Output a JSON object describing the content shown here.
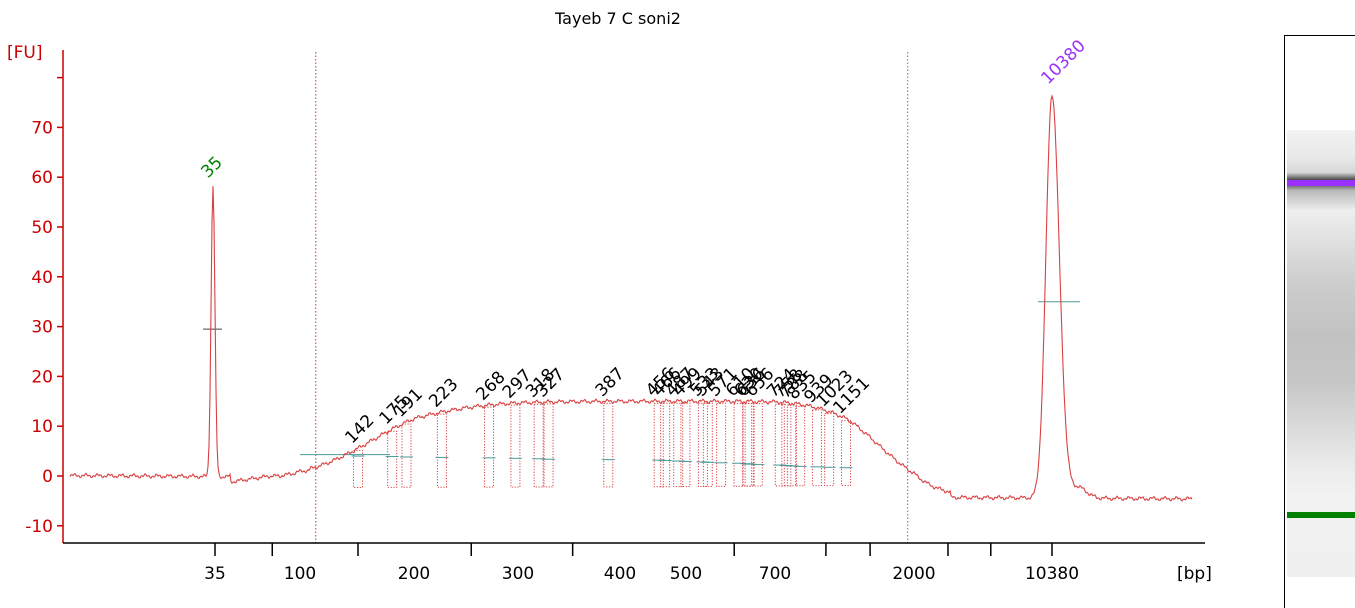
{
  "chart_data": {
    "type": "line",
    "title": "Tayeb 7 C soni2",
    "ylabel": "[FU]",
    "xlabel": "[bp]",
    "ylim": [
      -13,
      85
    ],
    "y_ticks": [
      -10,
      0,
      10,
      20,
      30,
      40,
      50,
      60,
      70
    ],
    "x_tick_labels": [
      "35",
      "100",
      "200",
      "300",
      "400",
      "500",
      "700",
      "2000",
      "10380"
    ],
    "lower_marker": {
      "label": "35",
      "height": 58.5
    },
    "upper_marker": {
      "label": "10380",
      "height": 76.5
    },
    "smear_region_bp": [
      110,
      1900
    ],
    "peak_labels": [
      "142",
      "175",
      "191",
      "223",
      "268",
      "297",
      "318",
      "327",
      "387",
      "456",
      "466",
      "487",
      "499",
      "533",
      "543",
      "571",
      "610",
      "630",
      "636",
      "656",
      "724",
      "758",
      "788",
      "835",
      "939",
      "1023",
      "1151"
    ],
    "smear_max_fu": 15,
    "colors": {
      "trace": "#d94040",
      "axis": "#cc0000",
      "lower_marker": "#008000",
      "upper_marker": "#9b30ff",
      "guide": "#808080",
      "baseline": "#4a9a9a"
    }
  },
  "gel": {
    "upper_band_color": "#9b30ff",
    "lower_band_color": "#008000"
  }
}
